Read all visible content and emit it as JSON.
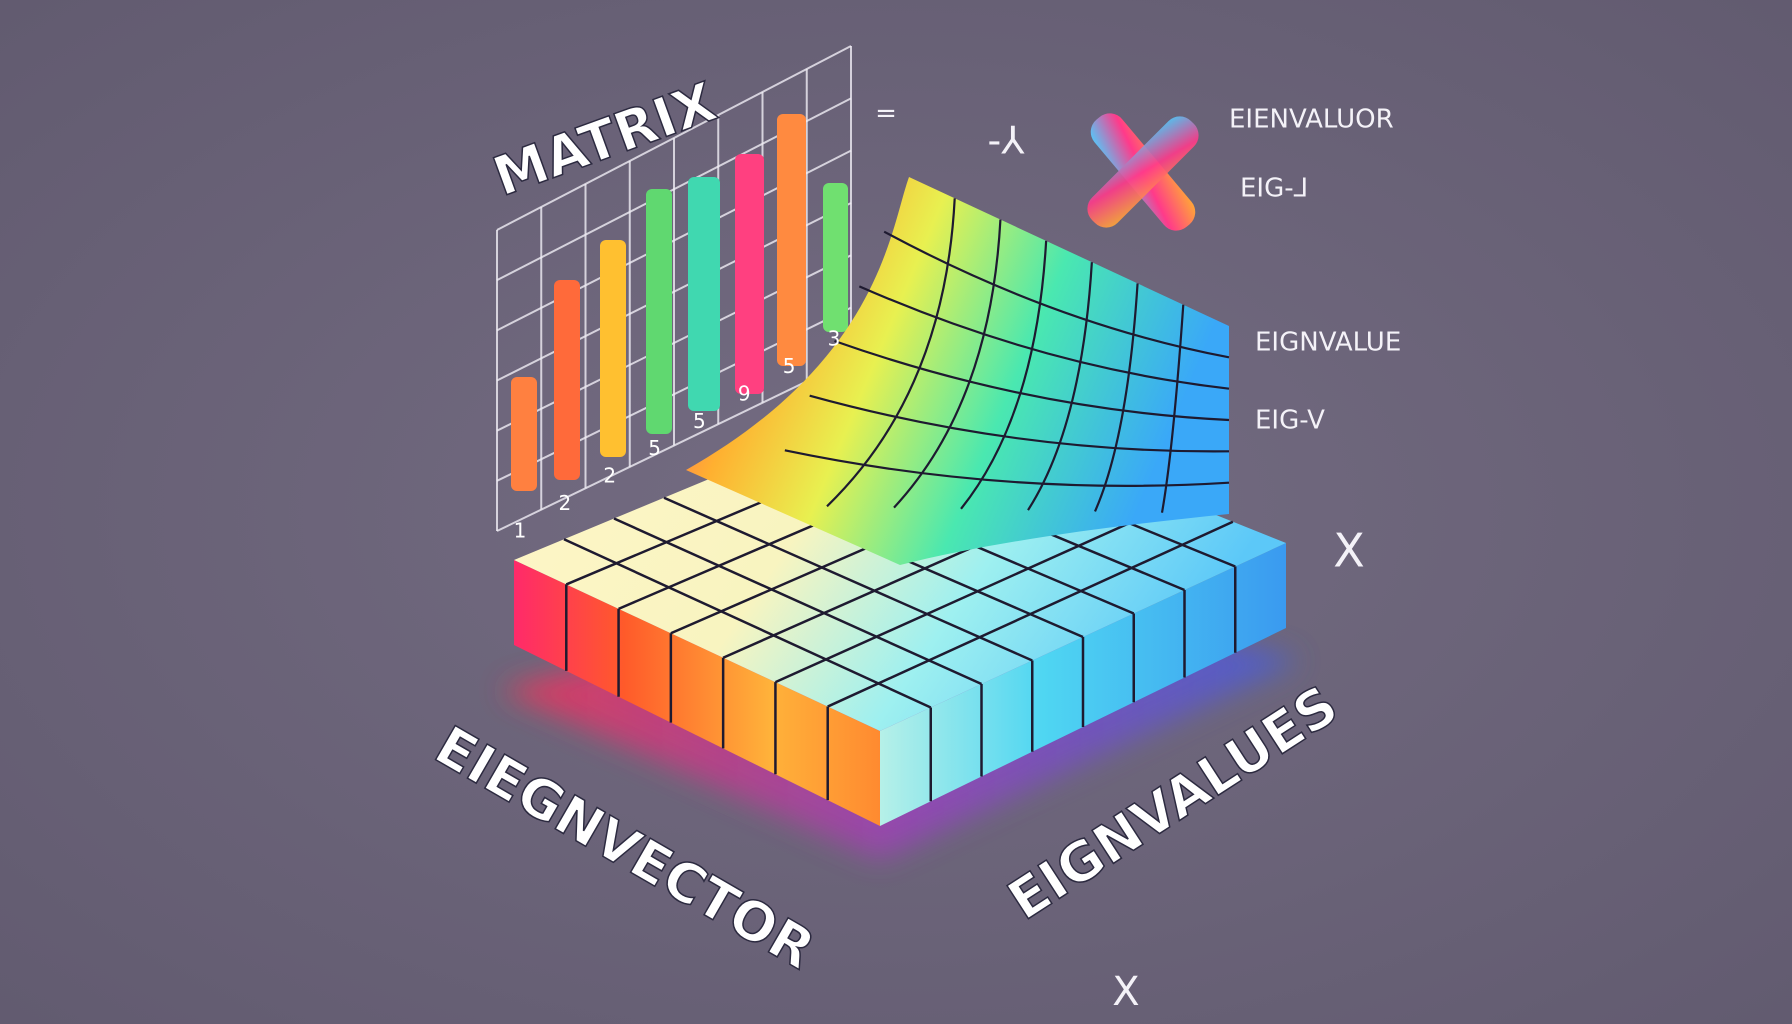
{
  "labels": {
    "matrix": "MATRIX",
    "equals": "=",
    "minus_sign": "-⅄",
    "eigenvaluor": "EIENVALUOR",
    "eig_top": "EIG-⅃",
    "eignvalue": "EIGNVALUE",
    "eig_mid": "EIG-V",
    "x_right": "X",
    "eigenvector": "EIEGNVECTOR",
    "eignvalues": "EIGNVALUES",
    "x_bottom": "X"
  },
  "axis_numbers": [
    "1",
    "2",
    "2",
    "5",
    "5",
    "9",
    "5",
    "3"
  ]
}
